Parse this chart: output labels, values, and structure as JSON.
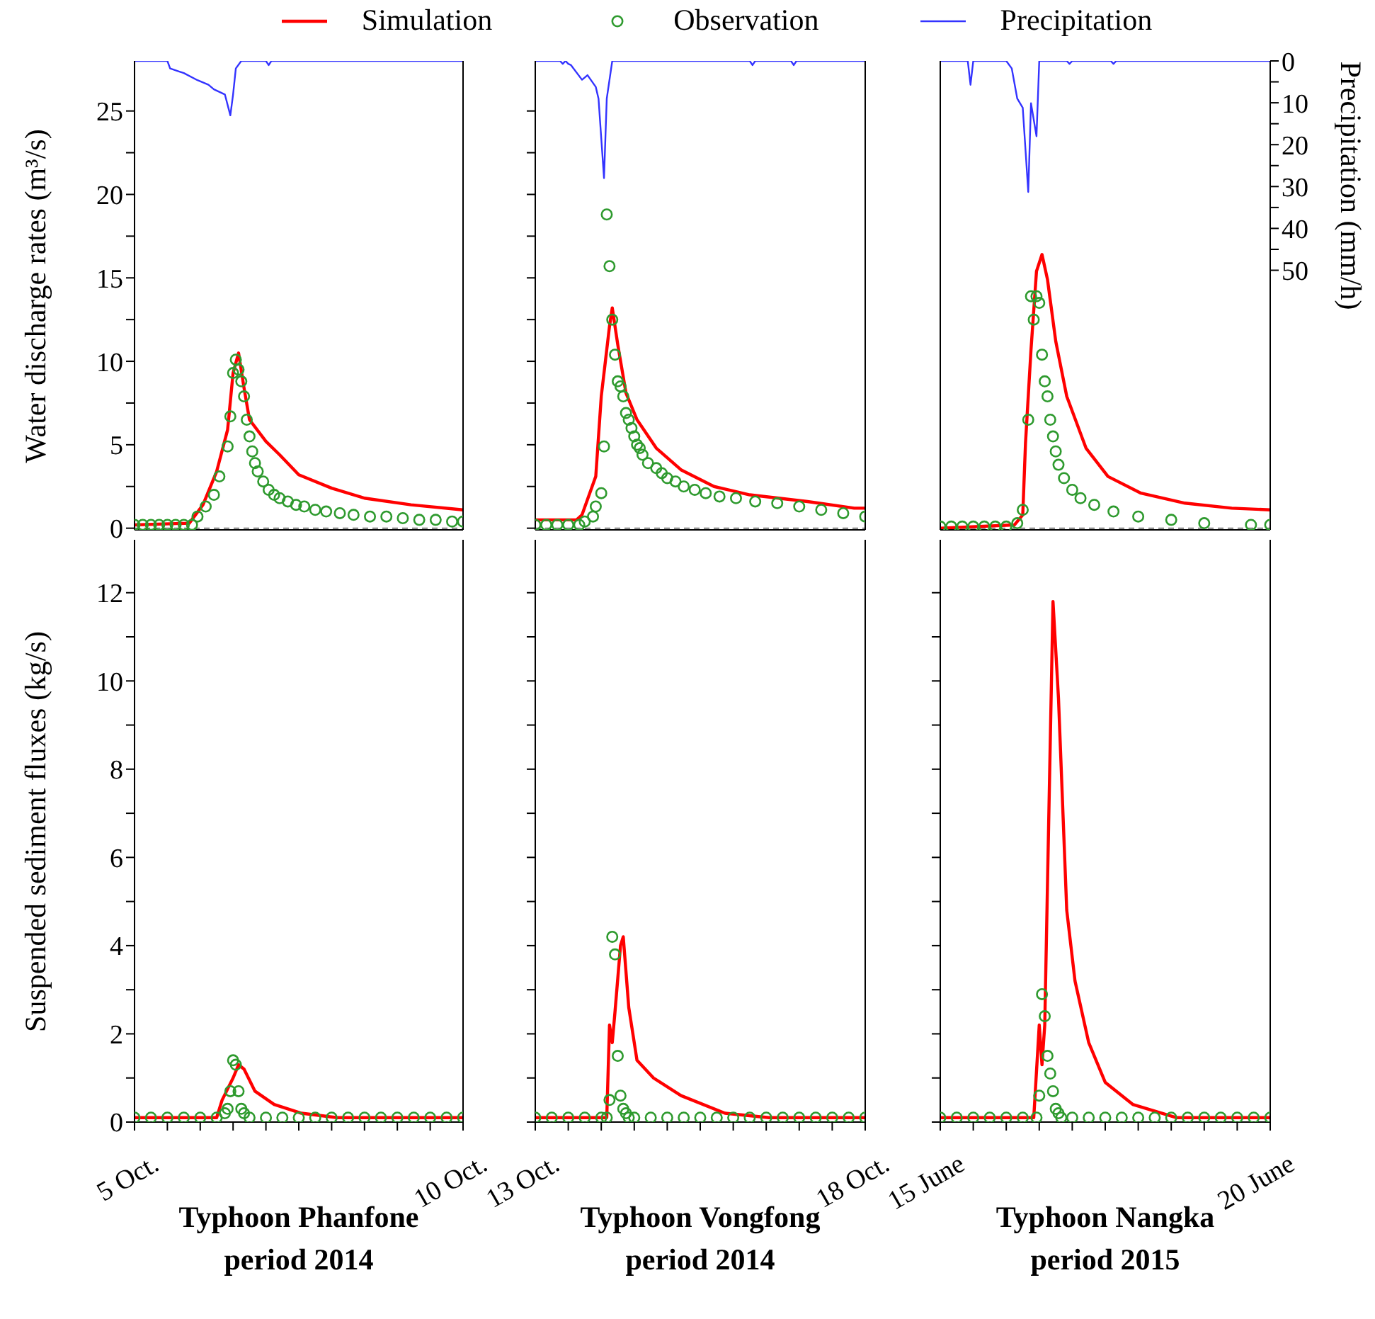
{
  "chart_data": [
    {
      "type": "line",
      "ylabel": "Water discharge rates (m³/s)",
      "legend": "top",
      "tick_labels": "y",
      "xlim": [
        "2014-10-05",
        "2014-10-10"
      ],
      "ylim": [
        -0.1,
        28
      ],
      "yticks": [
        0,
        {
          "value": 2.5,
          "label": null
        },
        5,
        {
          "value": 7.5,
          "label": null
        },
        10,
        {
          "value": 12.5,
          "label": null
        },
        15,
        {
          "value": 17.5,
          "label": null
        },
        20,
        {
          "value": 22.5,
          "label": null
        },
        25
      ],
      "y2lim": [
        112,
        0
      ],
      "ref_lines": [
        {
          "axis": "y",
          "value": 0,
          "color": "#808080",
          "line_style": "dashed"
        }
      ],
      "series": [
        {
          "name": "Simulation",
          "color": "#ff0000",
          "x": [
            "2014-10-05T00:00",
            "2014-10-05T20:00",
            "2014-10-06T01:00",
            "2014-10-06T06:00",
            "2014-10-06T10:00",
            "2014-10-06T12:00",
            "2014-10-06T14:00",
            "2014-10-06T16:00",
            "2014-10-06T18:00",
            "2014-10-07T00:00",
            "2014-10-07T05:00",
            "2014-10-07T12:00",
            "2014-10-08T00:00",
            "2014-10-08T12:00",
            "2014-10-09T05:00",
            "2014-10-10T00:00"
          ],
          "values": [
            0.2,
            0.3,
            1.4,
            3.4,
            5.9,
            9.3,
            10.5,
            8.4,
            6.5,
            5.2,
            4.4,
            3.2,
            2.4,
            1.8,
            1.4,
            1.1
          ]
        },
        {
          "name": "Observation",
          "type": "scatter",
          "marker": "circle",
          "color": "#2e9a2e",
          "x": [
            "2014-10-05T00:00",
            "2014-10-05T03:00",
            "2014-10-05T06:00",
            "2014-10-05T09:00",
            "2014-10-05T12:00",
            "2014-10-05T15:00",
            "2014-10-05T18:00",
            "2014-10-05T21:00",
            "2014-10-05T23:00",
            "2014-10-06T02:00",
            "2014-10-06T05:00",
            "2014-10-06T07:00",
            "2014-10-06T10:00",
            "2014-10-06T11:00",
            "2014-10-06T12:00",
            "2014-10-06T13:00",
            "2014-10-06T14:00",
            "2014-10-06T15:00",
            "2014-10-06T16:00",
            "2014-10-06T17:00",
            "2014-10-06T18:00",
            "2014-10-06T19:00",
            "2014-10-06T20:00",
            "2014-10-06T21:00",
            "2014-10-06T23:00",
            "2014-10-07T01:00",
            "2014-10-07T03:00",
            "2014-10-07T05:00",
            "2014-10-07T08:00",
            "2014-10-07T11:00",
            "2014-10-07T14:00",
            "2014-10-07T18:00",
            "2014-10-07T22:00",
            "2014-10-08T03:00",
            "2014-10-08T08:00",
            "2014-10-08T14:00",
            "2014-10-08T20:00",
            "2014-10-09T02:00",
            "2014-10-09T08:00",
            "2014-10-09T14:00",
            "2014-10-09T20:00",
            "2014-10-10T00:00"
          ],
          "values": [
            0.2,
            0.2,
            0.2,
            0.2,
            0.2,
            0.2,
            0.2,
            0.2,
            0.7,
            1.3,
            2.0,
            3.1,
            4.9,
            6.7,
            9.3,
            10.1,
            9.5,
            8.8,
            7.9,
            6.5,
            5.5,
            4.6,
            3.9,
            3.4,
            2.8,
            2.3,
            2.0,
            1.8,
            1.6,
            1.4,
            1.3,
            1.1,
            1.0,
            0.9,
            0.8,
            0.7,
            0.7,
            0.6,
            0.5,
            0.5,
            0.4,
            0.4
          ]
        },
        {
          "name": "Precipitation",
          "axis": "y2",
          "color": "#3333ff",
          "x": [
            "2014-10-05T00:00",
            "2014-10-05T12:00",
            "2014-10-05T13:00",
            "2014-10-05T18:00",
            "2014-10-05T23:00",
            "2014-10-06T03:00",
            "2014-10-06T05:00",
            "2014-10-06T09:00",
            "2014-10-06T11:00",
            "2014-10-06T12:00",
            "2014-10-06T13:00",
            "2014-10-06T15:00",
            "2014-10-07T00:00",
            "2014-10-07T01:00",
            "2014-10-07T02:00",
            "2014-10-10T00:00"
          ],
          "values": [
            0,
            0,
            1.8,
            2.9,
            4.6,
            5.7,
            6.8,
            8.0,
            13.0,
            8.0,
            1.8,
            0,
            0,
            1.0,
            0,
            0
          ]
        }
      ]
    },
    {
      "type": "line",
      "tick_labels": false,
      "xlim": [
        "2014-10-13",
        "2014-10-18"
      ],
      "ylim": [
        -0.1,
        28
      ],
      "yticks": [
        0,
        {
          "value": 2.5,
          "label": null
        },
        5,
        {
          "value": 7.5,
          "label": null
        },
        10,
        {
          "value": 12.5,
          "label": null
        },
        15,
        {
          "value": 17.5,
          "label": null
        },
        20,
        {
          "value": 22.5,
          "label": null
        },
        25
      ],
      "y2lim": [
        112,
        0
      ],
      "ref_lines": [
        {
          "axis": "y",
          "value": 0,
          "color": "#808080",
          "line_style": "dashed"
        }
      ],
      "series": [
        {
          "color": "#ff0000",
          "x": [
            "2014-10-13T00:00",
            "2014-10-13T15:00",
            "2014-10-13T17:00",
            "2014-10-13T22:00",
            "2014-10-14T00:00",
            "2014-10-14T03:00",
            "2014-10-14T04:00",
            "2014-10-14T06:00",
            "2014-10-14T09:00",
            "2014-10-14T13:00",
            "2014-10-14T20:00",
            "2014-10-15T05:00",
            "2014-10-15T17:00",
            "2014-10-16T06:00",
            "2014-10-17T03:00",
            "2014-10-17T20:00",
            "2014-10-18T00:00"
          ],
          "values": [
            0.5,
            0.5,
            0.8,
            3.1,
            7.9,
            12.1,
            13.2,
            11.0,
            8.1,
            6.5,
            4.8,
            3.5,
            2.5,
            2.0,
            1.6,
            1.2,
            1.2
          ]
        },
        {
          "type": "scatter",
          "marker": "circle",
          "color": "#2e9a2e",
          "x": [
            "2014-10-13T00:00",
            "2014-10-13T04:00",
            "2014-10-13T08:00",
            "2014-10-13T12:00",
            "2014-10-13T16:00",
            "2014-10-13T18:00",
            "2014-10-13T21:00",
            "2014-10-13T22:00",
            "2014-10-14T00:00",
            "2014-10-14T01:00",
            "2014-10-14T02:00",
            "2014-10-14T03:00",
            "2014-10-14T04:00",
            "2014-10-14T05:00",
            "2014-10-14T06:00",
            "2014-10-14T07:00",
            "2014-10-14T08:00",
            "2014-10-14T09:00",
            "2014-10-14T10:00",
            "2014-10-14T11:00",
            "2014-10-14T12:00",
            "2014-10-14T13:00",
            "2014-10-14T14:00",
            "2014-10-14T15:00",
            "2014-10-14T17:00",
            "2014-10-14T20:00",
            "2014-10-14T22:00",
            "2014-10-15T00:00",
            "2014-10-15T03:00",
            "2014-10-15T06:00",
            "2014-10-15T10:00",
            "2014-10-15T14:00",
            "2014-10-15T19:00",
            "2014-10-16T01:00",
            "2014-10-16T08:00",
            "2014-10-16T16:00",
            "2014-10-17T00:00",
            "2014-10-17T08:00",
            "2014-10-17T16:00",
            "2014-10-18T00:00"
          ],
          "values": [
            0.2,
            0.2,
            0.2,
            0.2,
            0.2,
            0.4,
            0.7,
            1.3,
            2.1,
            4.9,
            18.8,
            15.7,
            12.5,
            10.4,
            8.8,
            8.5,
            7.9,
            6.9,
            6.5,
            6.0,
            5.5,
            5.0,
            4.8,
            4.4,
            3.9,
            3.6,
            3.3,
            3.0,
            2.8,
            2.5,
            2.3,
            2.1,
            1.9,
            1.8,
            1.6,
            1.5,
            1.3,
            1.1,
            0.9,
            0.7
          ]
        },
        {
          "axis": "y2",
          "color": "#3333ff",
          "x": [
            "2014-10-13T00:00",
            "2014-10-13T09:00",
            "2014-10-13T10:00",
            "2014-10-13T11:00",
            "2014-10-13T12:00",
            "2014-10-13T13:00",
            "2014-10-13T17:00",
            "2014-10-13T19:00",
            "2014-10-13T22:00",
            "2014-10-13T23:00",
            "2014-10-14T01:00",
            "2014-10-14T02:00",
            "2014-10-14T04:00",
            "2014-10-16T06:00",
            "2014-10-16T07:00",
            "2014-10-16T08:00",
            "2014-10-16T21:00",
            "2014-10-16T22:00",
            "2014-10-16T23:00",
            "2014-10-18T00:00"
          ],
          "values": [
            0,
            0,
            0.7,
            0,
            0.7,
            1.0,
            4.5,
            3.4,
            6.2,
            9.0,
            28.0,
            9.0,
            0,
            0,
            1.0,
            0,
            0,
            1.0,
            0,
            0
          ]
        }
      ]
    },
    {
      "type": "line",
      "y2label": "Precipitation (mm/h)",
      "tick_labels": "y2",
      "xlim": [
        "2015-06-15",
        "2015-06-20"
      ],
      "ylim": [
        -0.1,
        28
      ],
      "y2lim": [
        112,
        0
      ],
      "y2ticks": [
        0,
        {
          "value": 5,
          "label": null
        },
        10,
        {
          "value": 15,
          "label": null
        },
        20,
        {
          "value": 25,
          "label": null
        },
        30,
        {
          "value": 35,
          "label": null
        },
        40,
        {
          "value": 45,
          "label": null
        },
        50
      ],
      "ref_lines": [
        {
          "axis": "y",
          "value": 0,
          "color": "#808080",
          "line_style": "dashed"
        }
      ],
      "series": [
        {
          "color": "#ff0000",
          "x": [
            "2015-06-15T00:00",
            "2015-06-16T03:00",
            "2015-06-16T06:00",
            "2015-06-16T07:00",
            "2015-06-16T09:00",
            "2015-06-16T11:00",
            "2015-06-16T13:00",
            "2015-06-16T15:00",
            "2015-06-16T18:00",
            "2015-06-16T22:00",
            "2015-06-17T05:00",
            "2015-06-17T13:00",
            "2015-06-18T01:00",
            "2015-06-18T17:00",
            "2015-06-19T10:00",
            "2015-06-20T00:00"
          ],
          "values": [
            0,
            0.2,
            0.8,
            5.1,
            10.7,
            15.4,
            16.4,
            14.9,
            11.2,
            7.9,
            4.8,
            3.1,
            2.1,
            1.5,
            1.2,
            1.1
          ]
        },
        {
          "type": "scatter",
          "marker": "circle",
          "color": "#2e9a2e",
          "x": [
            "2015-06-15T00:00",
            "2015-06-15T04:00",
            "2015-06-15T08:00",
            "2015-06-15T12:00",
            "2015-06-15T16:00",
            "2015-06-15T20:00",
            "2015-06-16T00:00",
            "2015-06-16T04:00",
            "2015-06-16T06:00",
            "2015-06-16T08:00",
            "2015-06-16T09:00",
            "2015-06-16T10:00",
            "2015-06-16T11:00",
            "2015-06-16T12:00",
            "2015-06-16T13:00",
            "2015-06-16T14:00",
            "2015-06-16T15:00",
            "2015-06-16T16:00",
            "2015-06-16T17:00",
            "2015-06-16T18:00",
            "2015-06-16T19:00",
            "2015-06-16T21:00",
            "2015-06-17T00:00",
            "2015-06-17T03:00",
            "2015-06-17T08:00",
            "2015-06-17T15:00",
            "2015-06-18T00:00",
            "2015-06-18T12:00",
            "2015-06-19T00:00",
            "2015-06-19T17:00",
            "2015-06-20T00:00"
          ],
          "values": [
            0.1,
            0.1,
            0.1,
            0.1,
            0.1,
            0.1,
            0.1,
            0.3,
            1.1,
            6.5,
            13.9,
            12.5,
            13.9,
            13.5,
            10.4,
            8.8,
            7.9,
            6.5,
            5.5,
            4.6,
            3.8,
            3.0,
            2.3,
            1.8,
            1.4,
            1.0,
            0.7,
            0.5,
            0.3,
            0.2,
            0.2
          ]
        },
        {
          "axis": "y2",
          "color": "#3333ff",
          "x": [
            "2015-06-15T00:00",
            "2015-06-15T10:00",
            "2015-06-15T11:00",
            "2015-06-15T12:00",
            "2015-06-16T00:00",
            "2015-06-16T02:00",
            "2015-06-16T04:00",
            "2015-06-16T06:00",
            "2015-06-16T08:00",
            "2015-06-16T09:00",
            "2015-06-16T11:00",
            "2015-06-16T12:00",
            "2015-06-16T22:00",
            "2015-06-16T23:00",
            "2015-06-17T00:00",
            "2015-06-17T14:00",
            "2015-06-17T15:00",
            "2015-06-17T16:00",
            "2015-06-20T00:00"
          ],
          "values": [
            0,
            0,
            5.7,
            0,
            0,
            1.8,
            9.0,
            11.2,
            31.3,
            10.1,
            18.0,
            0,
            0,
            0.7,
            0,
            0,
            0.7,
            0,
            0
          ]
        }
      ]
    },
    {
      "type": "line",
      "ylabel": "Suspended sediment fluxes (kg/s)",
      "xlabel": "Typhoon Phanfone\nperiod 2014",
      "xlim": [
        "2014-10-05",
        "2014-10-10"
      ],
      "ylim": [
        0,
        13.2
      ],
      "yticks": [
        0,
        {
          "value": 1,
          "label": null
        },
        2,
        {
          "value": 3,
          "label": null
        },
        4,
        {
          "value": 5,
          "label": null
        },
        6,
        {
          "value": 7,
          "label": null
        },
        8,
        {
          "value": 9,
          "label": null
        },
        10,
        {
          "value": 11,
          "label": null
        },
        12
      ],
      "xticks": [
        {
          "value": "2014-10-05",
          "label": "5 Oct."
        },
        {
          "value": "2014-10-05T12:00",
          "label": null
        },
        {
          "value": "2014-10-06",
          "label": null
        },
        {
          "value": "2014-10-06T12:00",
          "label": null
        },
        {
          "value": "2014-10-07",
          "label": null
        },
        {
          "value": "2014-10-07T12:00",
          "label": null
        },
        {
          "value": "2014-10-08",
          "label": null
        },
        {
          "value": "2014-10-08T12:00",
          "label": null
        },
        {
          "value": "2014-10-09",
          "label": null
        },
        {
          "value": "2014-10-09T12:00",
          "label": null
        },
        {
          "value": "2014-10-10",
          "label": "10 Oct."
        }
      ],
      "series": [
        {
          "color": "#ff0000",
          "x": [
            "2014-10-05T00:00",
            "2014-10-06T06:00",
            "2014-10-06T08:00",
            "2014-10-06T12:00",
            "2014-10-06T14:00",
            "2014-10-06T16:00",
            "2014-10-06T20:00",
            "2014-10-07T03:00",
            "2014-10-07T13:00",
            "2014-10-08T02:00",
            "2014-10-10T00:00"
          ],
          "values": [
            0.1,
            0.1,
            0.5,
            1.0,
            1.3,
            1.2,
            0.7,
            0.4,
            0.2,
            0.1,
            0.1
          ]
        },
        {
          "type": "scatter",
          "marker": "circle",
          "color": "#2e9a2e",
          "x": [
            "2014-10-05T00:00",
            "2014-10-05T06:00",
            "2014-10-05T12:00",
            "2014-10-05T18:00",
            "2014-10-06T00:00",
            "2014-10-06T06:00",
            "2014-10-06T09:00",
            "2014-10-06T10:00",
            "2014-10-06T11:00",
            "2014-10-06T12:00",
            "2014-10-06T13:00",
            "2014-10-06T14:00",
            "2014-10-06T15:00",
            "2014-10-06T16:00",
            "2014-10-06T18:00",
            "2014-10-07T00:00",
            "2014-10-07T06:00",
            "2014-10-07T12:00",
            "2014-10-07T18:00",
            "2014-10-08T00:00",
            "2014-10-08T06:00",
            "2014-10-08T12:00",
            "2014-10-08T18:00",
            "2014-10-09T00:00",
            "2014-10-09T06:00",
            "2014-10-09T12:00",
            "2014-10-09T18:00",
            "2014-10-10T00:00"
          ],
          "values": [
            0.1,
            0.1,
            0.1,
            0.1,
            0.1,
            0.1,
            0.2,
            0.3,
            0.7,
            1.4,
            1.3,
            0.7,
            0.3,
            0.2,
            0.1,
            0.1,
            0.1,
            0.1,
            0.1,
            0.1,
            0.1,
            0.1,
            0.1,
            0.1,
            0.1,
            0.1,
            0.1,
            0.1
          ]
        }
      ]
    },
    {
      "type": "line",
      "xlabel": "Typhoon Vongfong\nperiod 2014",
      "tick_labels": "x",
      "xlim": [
        "2014-10-13",
        "2014-10-18"
      ],
      "ylim": [
        0,
        13.2
      ],
      "yticks": [
        0,
        {
          "value": 1,
          "label": null
        },
        2,
        {
          "value": 3,
          "label": null
        },
        4,
        {
          "value": 5,
          "label": null
        },
        6,
        {
          "value": 7,
          "label": null
        },
        8,
        {
          "value": 9,
          "label": null
        },
        10,
        {
          "value": 11,
          "label": null
        },
        12
      ],
      "xticks": [
        {
          "value": "2014-10-13",
          "label": "13 Oct."
        },
        {
          "value": "2014-10-13T12:00",
          "label": null
        },
        {
          "value": "2014-10-14",
          "label": null
        },
        {
          "value": "2014-10-14T12:00",
          "label": null
        },
        {
          "value": "2014-10-15",
          "label": null
        },
        {
          "value": "2014-10-15T12:00",
          "label": null
        },
        {
          "value": "2014-10-16",
          "label": null
        },
        {
          "value": "2014-10-16T12:00",
          "label": null
        },
        {
          "value": "2014-10-17",
          "label": null
        },
        {
          "value": "2014-10-17T12:00",
          "label": null
        },
        {
          "value": "2014-10-18",
          "label": "18 Oct."
        }
      ],
      "series": [
        {
          "color": "#ff0000",
          "x": [
            "2014-10-13T00:00",
            "2014-10-14T02:00",
            "2014-10-14T03:00",
            "2014-10-14T04:00",
            "2014-10-14T05:00",
            "2014-10-14T07:00",
            "2014-10-14T08:00",
            "2014-10-14T10:00",
            "2014-10-14T13:00",
            "2014-10-14T19:00",
            "2014-10-15T05:00",
            "2014-10-15T21:00",
            "2014-10-16T13:00",
            "2014-10-18T00:00"
          ],
          "values": [
            0.1,
            0.1,
            2.2,
            1.8,
            2.5,
            4.0,
            4.2,
            2.6,
            1.4,
            1.0,
            0.6,
            0.2,
            0.1,
            0.1
          ]
        },
        {
          "type": "scatter",
          "marker": "circle",
          "color": "#2e9a2e",
          "x": [
            "2014-10-13T00:00",
            "2014-10-13T06:00",
            "2014-10-13T12:00",
            "2014-10-13T18:00",
            "2014-10-14T00:00",
            "2014-10-14T02:00",
            "2014-10-14T03:00",
            "2014-10-14T04:00",
            "2014-10-14T05:00",
            "2014-10-14T06:00",
            "2014-10-14T07:00",
            "2014-10-14T08:00",
            "2014-10-14T09:00",
            "2014-10-14T10:00",
            "2014-10-14T12:00",
            "2014-10-14T18:00",
            "2014-10-15T00:00",
            "2014-10-15T06:00",
            "2014-10-15T12:00",
            "2014-10-15T18:00",
            "2014-10-16T00:00",
            "2014-10-16T06:00",
            "2014-10-16T12:00",
            "2014-10-16T18:00",
            "2014-10-17T00:00",
            "2014-10-17T06:00",
            "2014-10-17T12:00",
            "2014-10-17T18:00",
            "2014-10-18T00:00"
          ],
          "values": [
            0.1,
            0.1,
            0.1,
            0.1,
            0.1,
            0.1,
            0.5,
            4.2,
            3.8,
            1.5,
            0.6,
            0.3,
            0.2,
            0.1,
            0.1,
            0.1,
            0.1,
            0.1,
            0.1,
            0.1,
            0.1,
            0.1,
            0.1,
            0.1,
            0.1,
            0.1,
            0.1,
            0.1,
            0.1
          ]
        }
      ]
    },
    {
      "type": "line",
      "xlabel": "Typhoon Nangka\nperiod 2015",
      "tick_labels": "x",
      "xlim": [
        "2015-06-15",
        "2015-06-20"
      ],
      "ylim": [
        0,
        13.2
      ],
      "yticks": [
        0,
        {
          "value": 1,
          "label": null
        },
        2,
        {
          "value": 3,
          "label": null
        },
        4,
        {
          "value": 5,
          "label": null
        },
        6,
        {
          "value": 7,
          "label": null
        },
        8,
        {
          "value": 9,
          "label": null
        },
        10,
        {
          "value": 11,
          "label": null
        },
        12
      ],
      "xticks": [
        {
          "value": "2015-06-15",
          "label": "15 June"
        },
        {
          "value": "2015-06-15T12:00",
          "label": null
        },
        {
          "value": "2015-06-16",
          "label": null
        },
        {
          "value": "2015-06-16T12:00",
          "label": null
        },
        {
          "value": "2015-06-17",
          "label": null
        },
        {
          "value": "2015-06-17T12:00",
          "label": null
        },
        {
          "value": "2015-06-18",
          "label": null
        },
        {
          "value": "2015-06-18T12:00",
          "label": null
        },
        {
          "value": "2015-06-19",
          "label": null
        },
        {
          "value": "2015-06-19T12:00",
          "label": null
        },
        {
          "value": "2015-06-20",
          "label": "20 June"
        }
      ],
      "series": [
        {
          "color": "#ff0000",
          "x": [
            "2015-06-15T00:00",
            "2015-06-16T10:00",
            "2015-06-16T12:00",
            "2015-06-16T13:00",
            "2015-06-16T14:00",
            "2015-06-16T17:00",
            "2015-06-16T19:00",
            "2015-06-16T22:00",
            "2015-06-17T01:00",
            "2015-06-17T06:00",
            "2015-06-17T12:00",
            "2015-06-17T22:00",
            "2015-06-18T14:00",
            "2015-06-20T00:00"
          ],
          "values": [
            0.1,
            0.1,
            2.2,
            1.3,
            2.2,
            11.8,
            9.6,
            4.8,
            3.2,
            1.8,
            0.9,
            0.4,
            0.1,
            0.1
          ]
        },
        {
          "type": "scatter",
          "marker": "circle",
          "color": "#2e9a2e",
          "x": [
            "2015-06-15T00:00",
            "2015-06-15T06:00",
            "2015-06-15T12:00",
            "2015-06-15T18:00",
            "2015-06-16T00:00",
            "2015-06-16T06:00",
            "2015-06-16T11:00",
            "2015-06-16T12:00",
            "2015-06-16T13:00",
            "2015-06-16T14:00",
            "2015-06-16T15:00",
            "2015-06-16T16:00",
            "2015-06-16T17:00",
            "2015-06-16T18:00",
            "2015-06-16T19:00",
            "2015-06-16T20:00",
            "2015-06-17T00:00",
            "2015-06-17T06:00",
            "2015-06-17T12:00",
            "2015-06-17T18:00",
            "2015-06-18T00:00",
            "2015-06-18T06:00",
            "2015-06-18T12:00",
            "2015-06-18T18:00",
            "2015-06-19T00:00",
            "2015-06-19T06:00",
            "2015-06-19T12:00",
            "2015-06-19T18:00",
            "2015-06-20T00:00"
          ],
          "values": [
            0.1,
            0.1,
            0.1,
            0.1,
            0.1,
            0.1,
            0.1,
            0.6,
            2.9,
            2.4,
            1.5,
            1.1,
            0.7,
            0.3,
            0.2,
            0.1,
            0.1,
            0.1,
            0.1,
            0.1,
            0.1,
            0.1,
            0.1,
            0.1,
            0.1,
            0.1,
            0.1,
            0.1,
            0.1
          ]
        }
      ]
    }
  ]
}
